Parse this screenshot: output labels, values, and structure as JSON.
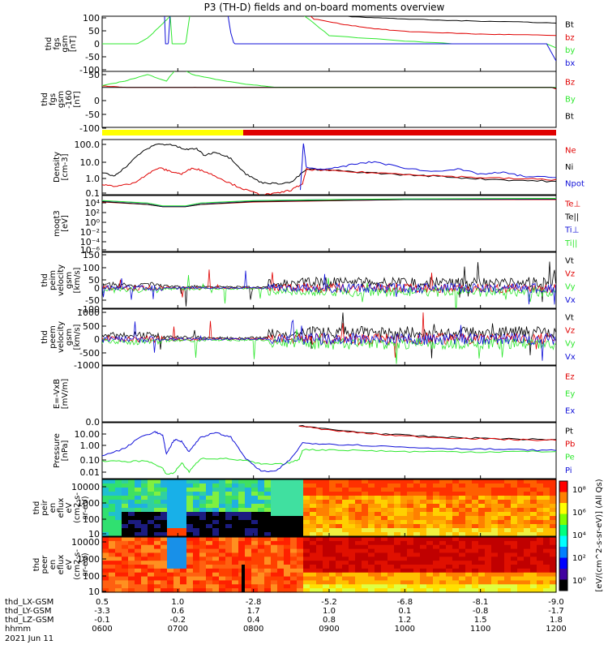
{
  "title": "P3 (TH-D) fields and on-board moments overview",
  "colors": {
    "black": "#000000",
    "red": "#e00000",
    "green": "#2ee82e",
    "blue": "#1010d8",
    "yellow": "#ffff00"
  },
  "chart_data": {
    "type": "line",
    "x_axis": {
      "ticks": [
        "0600",
        "0700",
        "0800",
        "0900",
        "1000",
        "1100",
        "1200"
      ],
      "tick_hours": [
        6,
        7,
        8,
        9,
        10,
        11,
        12
      ],
      "range_hours": [
        6,
        12
      ],
      "rows": [
        {
          "label": "thd_LX-GSM",
          "values": [
            "0.5",
            "1.0",
            "-2.8",
            "-5.2",
            "-6.8",
            "-8.1",
            "-9.0"
          ]
        },
        {
          "label": "thd_LY-GSM",
          "values": [
            "-3.3",
            "0.6",
            "1.7",
            "1.0",
            "0.1",
            "-0.8",
            "-1.7"
          ]
        },
        {
          "label": "thd_LZ-GSM",
          "values": [
            "-0.1",
            "-0.2",
            "0.4",
            "0.8",
            "1.2",
            "1.5",
            "1.8"
          ]
        },
        {
          "label": "hhmm",
          "values": [
            "0600",
            "0700",
            "0800",
            "0900",
            "1000",
            "1100",
            "1200"
          ]
        }
      ],
      "date": "2021 Jun 11"
    },
    "panels": [
      {
        "id": "fgs",
        "ylabel": [
          "thd",
          "fgs",
          "gsm",
          "[nT]"
        ],
        "scale": "linear",
        "ylim": [
          -100,
          100
        ],
        "yticks": [
          "100",
          "50",
          "0",
          "-50",
          "-100"
        ],
        "legend": [
          "Bt",
          "bz",
          "by",
          "bx"
        ],
        "legend_colors": [
          "black",
          "red",
          "green",
          "blue"
        ]
      },
      {
        "id": "fgs2",
        "ylabel": [
          "thd",
          "fgs",
          "gsm",
          "-160",
          "[nT]"
        ],
        "scale": "linear",
        "ylim": [
          -125,
          50
        ],
        "yticks": [
          "50",
          "0",
          "-50",
          "-100"
        ],
        "legend": [
          "Bz",
          "By",
          "Bt"
        ],
        "legend_colors": [
          "red",
          "green",
          "black"
        ]
      },
      {
        "id": "density",
        "ylabel": [
          "Density",
          "[cm-3]"
        ],
        "scale": "log",
        "ylim": [
          0.1,
          300
        ],
        "yticks": [
          "100.0",
          "10.0",
          "1.0",
          "0.1"
        ],
        "legend": [
          "Ne",
          "Ni",
          "Npot"
        ],
        "legend_colors": [
          "red",
          "black",
          "blue"
        ]
      },
      {
        "id": "temp",
        "ylabel": [
          "moqt3",
          "[eV]"
        ],
        "scale": "log",
        "yticks": [
          "10⁴",
          "10²",
          "10⁰",
          "10⁻²",
          "10⁻⁴",
          "10⁻⁶"
        ],
        "legend": [
          "Te⊥",
          "Te||",
          "Ti⊥",
          "Ti||"
        ],
        "legend_colors": [
          "red",
          "black",
          "blue",
          "green"
        ]
      },
      {
        "id": "peim",
        "ylabel": [
          "thd",
          "peim",
          "velocity",
          "gsm",
          "[km/s]"
        ],
        "scale": "linear",
        "ylim": [
          -100,
          150
        ],
        "yticks": [
          "150",
          "100",
          "50",
          "0",
          "-50",
          "-100"
        ],
        "legend": [
          "Vt",
          "Vz",
          "Vy",
          "Vx"
        ],
        "legend_colors": [
          "black",
          "red",
          "green",
          "blue"
        ]
      },
      {
        "id": "peem",
        "ylabel": [
          "thd",
          "peem",
          "velocity",
          "gsm",
          "[km/s]"
        ],
        "scale": "linear",
        "ylim": [
          -1000,
          1000
        ],
        "yticks": [
          "1000",
          "500",
          "0",
          "-500",
          "-1000"
        ],
        "legend": [
          "Vt",
          "Vz",
          "Vy",
          "Vx"
        ],
        "legend_colors": [
          "black",
          "red",
          "green",
          "blue"
        ]
      },
      {
        "id": "efield",
        "ylabel": [
          "E=-VxB",
          "[mV/m]"
        ],
        "scale": "linear",
        "yticks": [
          "0.0"
        ],
        "legend": [
          "Ez",
          "Ey",
          "Ex"
        ],
        "legend_colors": [
          "red",
          "green",
          "blue"
        ]
      },
      {
        "id": "pressure",
        "ylabel": [
          "Pressure",
          "[nPa]"
        ],
        "scale": "log",
        "ylim": [
          0.004,
          30
        ],
        "yticks": [
          "10.00",
          "1.00",
          "0.10",
          "0.01"
        ],
        "legend": [
          "Pt",
          "Pb",
          "Pe",
          "Pi"
        ],
        "legend_colors": [
          "black",
          "red",
          "green",
          "blue"
        ]
      },
      {
        "id": "peir",
        "ylabel": [
          "thd",
          "peir",
          "en",
          "eflux",
          "eV",
          "(cm2-s-",
          "sr-eV)"
        ],
        "scale": "log",
        "type": "heatmap",
        "yticks": [
          "10000",
          "1000",
          "100",
          "10"
        ]
      },
      {
        "id": "peer",
        "ylabel": [
          "thd",
          "peer",
          "en",
          "eflux",
          "eV",
          "(cm2-s-",
          "sr-eV)"
        ],
        "scale": "log",
        "type": "heatmap",
        "yticks": [
          "10000",
          "1000",
          "100",
          "10"
        ]
      }
    ],
    "colorbar": {
      "label": "[eV/(cm^2-s-sr-eV)] (All Qs)",
      "ticks": [
        "10⁸",
        "10⁶",
        "10⁴",
        "10²",
        "10⁰"
      ]
    },
    "series": {
      "fgs": {
        "Bt": {
          "x": [
            6.0,
            6.3,
            6.6,
            7.0,
            7.5,
            8.0,
            8.55,
            8.8,
            9.2,
            9.6,
            10.0,
            10.5,
            11.0,
            11.5,
            12.0
          ],
          "y": [
            240,
            230,
            210,
            200,
            190,
            185,
            140,
            110,
            100,
            95,
            90,
            85,
            82,
            80,
            75
          ]
        },
        "bz": {
          "x": [
            8.55,
            8.8,
            9.2,
            9.6,
            10.0,
            10.5,
            11.0,
            11.5,
            12.0
          ],
          "y": [
            150,
            90,
            70,
            55,
            45,
            40,
            35,
            33,
            30
          ]
        },
        "by": {
          "x": [
            6.0,
            6.2,
            6.4,
            6.6,
            6.75,
            6.9,
            6.95,
            7.05,
            7.2,
            7.4,
            7.6,
            7.8,
            8.0,
            8.5,
            9.0,
            10.0,
            11.0,
            12.0
          ],
          "y": [
            -40,
            -30,
            -10,
            20,
            60,
            100,
            -100,
            -100,
            180,
            200,
            190,
            170,
            160,
            140,
            30,
            10,
            -5,
            -15
          ]
        },
        "bx": {
          "x": [
            6.0,
            6.6,
            6.8,
            6.85,
            6.9,
            7.2,
            7.3,
            7.55,
            7.7,
            7.85,
            8.0,
            8.5,
            9.0,
            10.0,
            11.0,
            12.0
          ],
          "y": [
            300,
            300,
            300,
            -100,
            110,
            300,
            300,
            300,
            40,
            -100,
            -100,
            -95,
            -85,
            -75,
            -70,
            -62
          ]
        }
      },
      "fgs2": {
        "Bz": {
          "x": [
            6.0,
            6.3,
            6.5,
            6.8,
            7.0,
            7.2,
            7.4,
            7.6,
            7.9,
            8.2,
            8.6,
            9.0,
            9.5,
            10.0,
            10.5,
            11.0,
            11.5,
            12.0
          ],
          "y": [
            5,
            0,
            -8,
            -4,
            -10,
            0,
            -2,
            -18,
            -30,
            -25,
            -15,
            -22,
            -28,
            -25,
            -20,
            -14,
            -8,
            -5
          ]
        },
        "By": {
          "x": [
            6.0,
            6.3,
            6.6,
            6.85,
            7.0,
            7.2,
            7.5,
            7.9,
            8.3,
            8.7,
            9.0,
            9.5,
            10.0,
            10.5,
            11.0,
            11.5,
            12.0
          ],
          "y": [
            5,
            20,
            40,
            20,
            65,
            40,
            25,
            10,
            0,
            -2,
            -5,
            -8,
            -7,
            -8,
            -10,
            -5,
            0
          ]
        },
        "Bt": {
          "x": [
            6.0,
            6.2,
            6.4,
            6.6,
            6.8,
            6.95,
            7.1,
            7.3,
            7.5,
            7.7,
            7.9,
            8.2,
            8.6,
            9.0,
            9.5,
            10.0,
            10.5,
            11.0,
            11.5,
            12.0
          ],
          "y": [
            0,
            -8,
            -20,
            -50,
            -100,
            -130,
            -100,
            -60,
            -40,
            -25,
            -15,
            -12,
            -8,
            -5,
            -12,
            -20,
            -15,
            -10,
            -8,
            -2
          ]
        }
      },
      "density": {
        "Ni": {
          "x": [
            6.0,
            6.15,
            6.3,
            6.5,
            6.7,
            6.9,
            7.1,
            7.25,
            7.35,
            7.5,
            7.7,
            7.9,
            8.1,
            8.3,
            8.5,
            8.7,
            9.0,
            9.5,
            10.0,
            10.5,
            11.0,
            11.5,
            12.0
          ],
          "y": [
            2.5,
            1.5,
            5,
            40,
            150,
            150,
            70,
            80,
            30,
            50,
            20,
            2,
            0.6,
            0.5,
            0.6,
            4,
            3.5,
            2.5,
            1.8,
            1.4,
            1.0,
            0.8,
            0.7
          ]
        },
        "Ne": {
          "x": [
            6.0,
            6.2,
            6.4,
            6.6,
            6.75,
            6.9,
            7.05,
            7.2,
            7.35,
            7.5,
            7.7,
            7.9,
            8.1,
            8.3,
            8.5,
            8.65,
            8.7,
            9.0,
            9.5,
            10.0,
            10.5,
            11.0,
            11.5,
            12.0
          ],
          "y": [
            0.4,
            0.35,
            0.5,
            2,
            5,
            3,
            2,
            5,
            3,
            1.5,
            0.5,
            0.2,
            0.1,
            0.12,
            0.2,
            0.5,
            4,
            3.2,
            2.5,
            2,
            1.5,
            1.2,
            1.0,
            0.9
          ]
        },
        "Npot": {
          "x": [
            8.62,
            8.66,
            8.7,
            9.0,
            9.3,
            9.6,
            9.9,
            10.3,
            10.7,
            11.0,
            11.3,
            11.6,
            12.0
          ],
          "y": [
            0.2,
            180,
            5,
            4,
            8,
            12,
            6,
            3,
            4,
            2,
            2.5,
            1.4,
            1.2
          ]
        }
      },
      "temp": {
        "Te⊥": {
          "x": [
            6,
            6.6,
            6.8,
            7.1,
            7.3,
            8,
            9,
            10,
            11,
            12
          ],
          "y": [
            2,
            1,
            0.1,
            0.1,
            1,
            2,
            2.5,
            3,
            3,
            3
          ]
        },
        "Te||": {
          "x": [
            6,
            6.6,
            6.8,
            7.1,
            7.3,
            8,
            9,
            10,
            11,
            12
          ],
          "y": [
            2.2,
            1,
            0.1,
            0.1,
            1,
            2.2,
            2.6,
            3,
            3.1,
            3.2
          ]
        },
        "Ti⊥": {
          "x": [
            6,
            6.6,
            6.8,
            7.1,
            7.3,
            8,
            9,
            10,
            11,
            12
          ],
          "y": [
            2.5,
            1.5,
            0.3,
            0.3,
            1.5,
            2.5,
            3,
            3.2,
            3.3,
            3.4
          ]
        },
        "Ti||": {
          "x": [
            6,
            6.6,
            6.8,
            7.1,
            7.3,
            8,
            9,
            10,
            11,
            12
          ],
          "y": [
            2.6,
            1.6,
            0.4,
            0.4,
            1.6,
            2.6,
            3,
            3.3,
            3.4,
            3.5
          ]
        }
      },
      "pressure": {
        "Pt": {
          "x": [
            8.6,
            9.0,
            9.5,
            10.0,
            10.5,
            11.0,
            11.5,
            12.0
          ],
          "y": [
            20,
            10,
            6,
            4,
            3,
            2.5,
            2.2,
            2
          ]
        },
        "Pb": {
          "x": [
            8.6,
            9.0,
            9.5,
            10.0,
            10.5,
            11.0,
            11.5,
            12.0
          ],
          "y": [
            18,
            9,
            5.5,
            3.5,
            2.8,
            2.3,
            2,
            1.8
          ]
        },
        "Pe": {
          "x": [
            6.0,
            6.3,
            6.6,
            6.8,
            6.85,
            6.95,
            7.05,
            7.15,
            7.3,
            7.6,
            7.9,
            8.1,
            8.4,
            8.6,
            8.65,
            9.0,
            9.5,
            10.0,
            10.5,
            11.0,
            11.5,
            12.0
          ],
          "y": [
            0.07,
            0.06,
            0.07,
            0.02,
            0.008,
            0.01,
            0.05,
            0.012,
            0.1,
            0.1,
            0.07,
            0.04,
            0.04,
            0.08,
            0.4,
            0.4,
            0.35,
            0.3,
            0.3,
            0.28,
            0.3,
            0.3
          ]
        },
        "Pi": {
          "x": [
            6.0,
            6.3,
            6.5,
            6.7,
            6.8,
            6.85,
            6.95,
            7.05,
            7.15,
            7.3,
            7.5,
            7.7,
            7.9,
            8.1,
            8.3,
            8.5,
            8.65,
            9.0,
            9.5,
            10.0,
            10.5,
            11.0,
            11.5,
            12.0
          ],
          "y": [
            0.15,
            0.5,
            3,
            7,
            4,
            0.2,
            2,
            1.5,
            0.3,
            3,
            6,
            3,
            0.1,
            0.013,
            0.013,
            0.1,
            1.2,
            1.0,
            0.8,
            0.6,
            0.5,
            0.45,
            0.4,
            0.35
          ]
        }
      }
    }
  }
}
